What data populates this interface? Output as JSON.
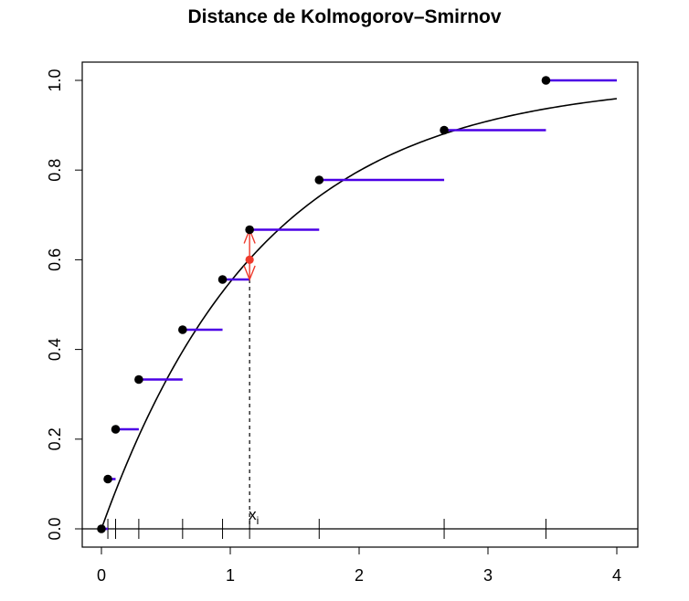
{
  "chart_data": {
    "type": "line",
    "title": "Distance de Kolmogorov–Smirnov",
    "xlabel": "",
    "ylabel": "",
    "xlim": [
      0,
      4
    ],
    "ylim": [
      0,
      1
    ],
    "x_ticks": [
      "0",
      "1",
      "2",
      "3",
      "4"
    ],
    "y_ticks": [
      "0.0",
      "0.2",
      "0.4",
      "0.6",
      "0.8",
      "1.0"
    ],
    "sample_points": [
      0.05,
      0.11,
      0.29,
      0.63,
      0.94,
      1.15,
      1.69,
      2.66,
      3.45
    ],
    "ecdf_points": [
      {
        "x": 0.0,
        "y": 0.0
      },
      {
        "x": 0.05,
        "y": 0.111
      },
      {
        "x": 0.11,
        "y": 0.222
      },
      {
        "x": 0.29,
        "y": 0.333
      },
      {
        "x": 0.63,
        "y": 0.444
      },
      {
        "x": 0.94,
        "y": 0.556
      },
      {
        "x": 1.15,
        "y": 0.667
      },
      {
        "x": 1.69,
        "y": 0.778
      },
      {
        "x": 2.66,
        "y": 0.889
      },
      {
        "x": 3.45,
        "y": 1.0
      }
    ],
    "ecdf_segments": [
      {
        "x0": 0.0,
        "x1": 0.05,
        "y": 0.0
      },
      {
        "x0": 0.05,
        "x1": 0.11,
        "y": 0.111
      },
      {
        "x0": 0.11,
        "x1": 0.29,
        "y": 0.222
      },
      {
        "x0": 0.29,
        "x1": 0.63,
        "y": 0.333
      },
      {
        "x0": 0.63,
        "x1": 0.94,
        "y": 0.444
      },
      {
        "x0": 0.94,
        "x1": 1.15,
        "y": 0.556
      },
      {
        "x0": 1.15,
        "x1": 1.69,
        "y": 0.667
      },
      {
        "x0": 1.69,
        "x1": 2.66,
        "y": 0.778
      },
      {
        "x0": 2.66,
        "x1": 3.45,
        "y": 0.889
      },
      {
        "x0": 3.45,
        "x1": 4.0,
        "y": 1.0
      }
    ],
    "theoretical_cdf": {
      "form": "1 - exp(-rate * x)",
      "rate": 0.8,
      "x_range": [
        0,
        4
      ]
    },
    "ks_distance": {
      "x": 1.15,
      "y_from": 0.556,
      "y_to": 0.667,
      "cdf_value": 0.6
    },
    "annotation": {
      "label": "x",
      "subscript": "i",
      "x": 1.15
    },
    "colors": {
      "step": "#4b00e6",
      "curve": "#000000",
      "points": "#000000",
      "ks": "#ee3a2c"
    },
    "grid": false,
    "legend": "none"
  }
}
